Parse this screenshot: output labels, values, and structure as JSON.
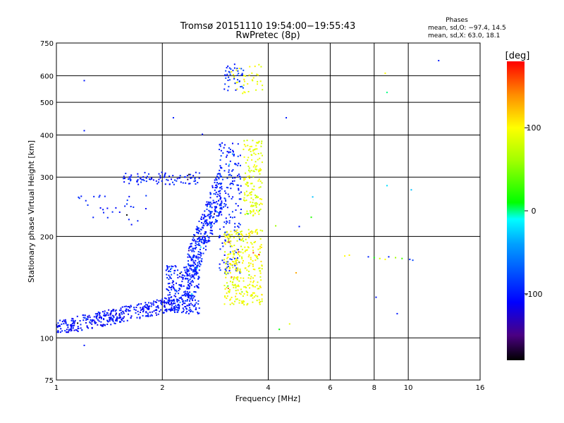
{
  "chart_data": {
    "type": "scatter",
    "title": "Tromsø 20151110 19:54:00−19:55:43",
    "subtitle": "RwPretec (8p)",
    "xlabel": "Frequency [MHz]",
    "ylabel": "Stationary phase Virtual Height [km]",
    "x_scale": "log",
    "y_scale": "log",
    "xlim": [
      1,
      16
    ],
    "ylim": [
      75,
      750
    ],
    "x_ticks": [
      1,
      2,
      4,
      6,
      8,
      10,
      16
    ],
    "y_ticks": [
      75,
      100,
      200,
      300,
      400,
      500,
      600,
      750
    ],
    "grid": true,
    "stats": {
      "heading": "Phases",
      "line_o": "mean, sd,O: −97.4, 14.5",
      "line_x": "mean, sd,X: 63.0, 18.1"
    },
    "colorbar": {
      "label": "[deg]",
      "range": [
        -180,
        180
      ],
      "ticks": [
        100,
        0,
        -100
      ],
      "colors": [
        "#000000",
        "#4b0082",
        "#0000ff",
        "#00ffff",
        "#00ff00",
        "#ffff00",
        "#ff8c00",
        "#ff0000"
      ]
    },
    "point_clusters": [
      {
        "name": "o-trace-low",
        "x": [
          1.0,
          2.45
        ],
        "y": [
          104,
          135
        ],
        "phase": -105,
        "count": 420
      },
      {
        "name": "o-trace-mid",
        "x": [
          2.05,
          2.55
        ],
        "y": [
          118,
          165
        ],
        "phase": -100,
        "count": 220
      },
      {
        "name": "o-trace-rise",
        "x": [
          2.35,
          2.95
        ],
        "y": [
          140,
          320
        ],
        "phase": -98,
        "count": 380
      },
      {
        "name": "o-trace-upper",
        "x": [
          1.55,
          2.55
        ],
        "y": [
          285,
          310
        ],
        "phase": -100,
        "count": 90
      },
      {
        "name": "o-spread-3mhz",
        "x": [
          2.9,
          3.35
        ],
        "y": [
          155,
          380
        ],
        "phase": -95,
        "count": 180
      },
      {
        "name": "o-top",
        "x": [
          3.0,
          3.4
        ],
        "y": [
          540,
          650
        ],
        "phase": -90,
        "count": 40
      },
      {
        "name": "x-trace",
        "x": [
          3.0,
          3.85
        ],
        "y": [
          125,
          210
        ],
        "phase": 95,
        "count": 320
      },
      {
        "name": "x-upper",
        "x": [
          3.4,
          3.85
        ],
        "y": [
          230,
          390
        ],
        "phase": 90,
        "count": 150
      },
      {
        "name": "x-top",
        "x": [
          3.1,
          3.9
        ],
        "y": [
          520,
          650
        ],
        "phase": 95,
        "count": 35
      },
      {
        "name": "oblique-layer",
        "x": [
          1.15,
          1.8
        ],
        "y": [
          215,
          265
        ],
        "phase": -100,
        "count": 30
      }
    ],
    "isolated_points": [
      {
        "x": 6.6,
        "y": 175,
        "phase": 100
      },
      {
        "x": 6.8,
        "y": 176,
        "phase": 105
      },
      {
        "x": 7.7,
        "y": 174,
        "phase": -95
      },
      {
        "x": 8.0,
        "y": 173,
        "phase": 10
      },
      {
        "x": 8.3,
        "y": 172,
        "phase": 80
      },
      {
        "x": 8.6,
        "y": 171,
        "phase": 100
      },
      {
        "x": 8.8,
        "y": 174,
        "phase": -100
      },
      {
        "x": 9.2,
        "y": 173,
        "phase": 60
      },
      {
        "x": 9.6,
        "y": 172,
        "phase": 30
      },
      {
        "x": 10.1,
        "y": 171,
        "phase": -95
      },
      {
        "x": 10.3,
        "y": 170,
        "phase": -80
      },
      {
        "x": 8.7,
        "y": 535,
        "phase": 0
      },
      {
        "x": 8.6,
        "y": 610,
        "phase": 100
      },
      {
        "x": 12.2,
        "y": 665,
        "phase": -100
      },
      {
        "x": 8.7,
        "y": 283,
        "phase": -20
      },
      {
        "x": 10.2,
        "y": 275,
        "phase": -30
      },
      {
        "x": 9.3,
        "y": 118,
        "phase": -100
      },
      {
        "x": 8.1,
        "y": 132,
        "phase": -100
      },
      {
        "x": 4.5,
        "y": 450,
        "phase": -100
      },
      {
        "x": 4.6,
        "y": 110,
        "phase": 90
      },
      {
        "x": 4.3,
        "y": 106,
        "phase": 10
      },
      {
        "x": 5.3,
        "y": 228,
        "phase": 20
      },
      {
        "x": 5.35,
        "y": 262,
        "phase": -30
      },
      {
        "x": 4.9,
        "y": 214,
        "phase": -100
      },
      {
        "x": 4.2,
        "y": 215,
        "phase": 60
      },
      {
        "x": 4.8,
        "y": 156,
        "phase": 130
      },
      {
        "x": 1.2,
        "y": 95,
        "phase": -100
      },
      {
        "x": 1.2,
        "y": 412,
        "phase": -100
      },
      {
        "x": 1.2,
        "y": 580,
        "phase": -100
      },
      {
        "x": 2.15,
        "y": 450,
        "phase": -100
      },
      {
        "x": 2.6,
        "y": 402,
        "phase": -100
      }
    ]
  }
}
